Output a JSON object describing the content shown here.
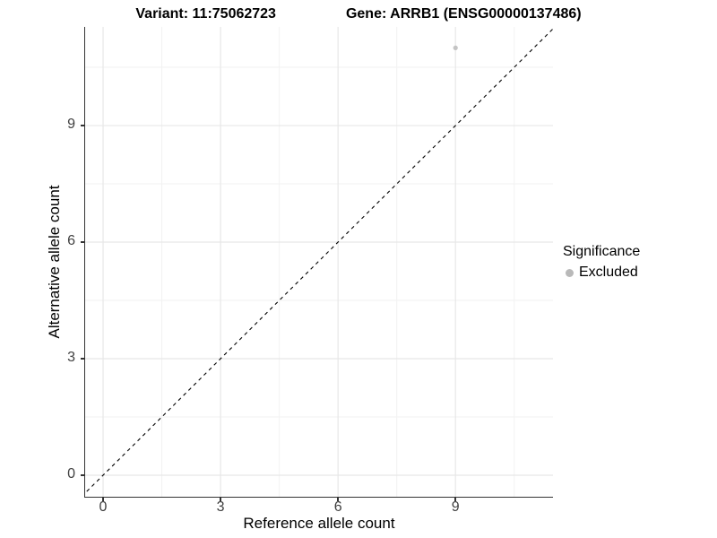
{
  "chart_data": {
    "type": "scatter",
    "title_parts": [
      "Variant: 11:75062723",
      "Gene: ARRB1 (ENSG00000137486)"
    ],
    "xlabel": "Reference allele count",
    "ylabel": "Alternative allele count",
    "xlim": [
      -0.458,
      11.49
    ],
    "ylim": [
      -0.554,
      11.54
    ],
    "x_ticks": [
      0,
      3,
      6,
      9
    ],
    "y_ticks": [
      0,
      3,
      6,
      9
    ],
    "x_minor_ticks": [
      1.5,
      4.5,
      7.5,
      10.5
    ],
    "y_minor_ticks": [
      1.5,
      4.5,
      7.5,
      10.5
    ],
    "grid": true,
    "points": [
      {
        "x": 9,
        "y": 11,
        "significance": "Excluded"
      }
    ],
    "reference_line": {
      "slope": 1,
      "intercept": 0,
      "style": "dashed"
    },
    "legend": {
      "position": "right",
      "title": "Significance",
      "entries": [
        {
          "label": "Excluded",
          "color": "#b9b9b9"
        }
      ]
    },
    "colors": {
      "point": "#c4c4c4",
      "legend_point": "#b9b9b9",
      "grid_major": "#e7e7e7",
      "grid_minor": "#f2f2f2",
      "axis_line": "#333333",
      "reference_line": "#000000",
      "tick_label": "#404040",
      "title": "#000000"
    }
  }
}
